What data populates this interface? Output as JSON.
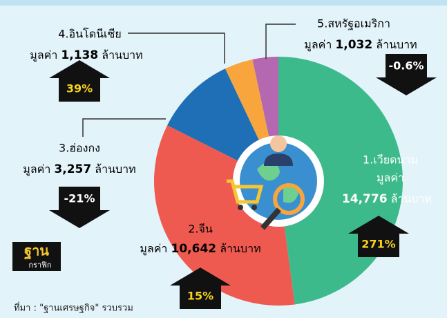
{
  "chart_data": {
    "type": "pie",
    "categories": [
      "1.เวียดนาม",
      "2.จีน",
      "3.ฮ่องกง",
      "4.อินโดนีเซีย",
      "5.สหรัฐอเมริกา"
    ],
    "values": [
      14776,
      10642,
      3257,
      1138,
      1032
    ],
    "value_labels": [
      "14,776",
      "10,642",
      "3,257",
      "1,138",
      "1,032"
    ],
    "colors": [
      "#3dba8c",
      "#ef5a50",
      "#1e6fb5",
      "#f7a53c",
      "#b468b0"
    ],
    "value_prefix": "มูลค่า",
    "value_unit": "ล้านบาท",
    "changes": [
      271,
      15,
      -21,
      39,
      -0.6
    ],
    "change_labels": [
      "271%",
      "15%",
      "-21%",
      "39%",
      "-0.6%"
    ],
    "logo": [
      "ฐาน",
      "กราฟิก"
    ],
    "source": "ที่มา : \"ฐานเศรษฐกิจ\" รวบรวม"
  }
}
